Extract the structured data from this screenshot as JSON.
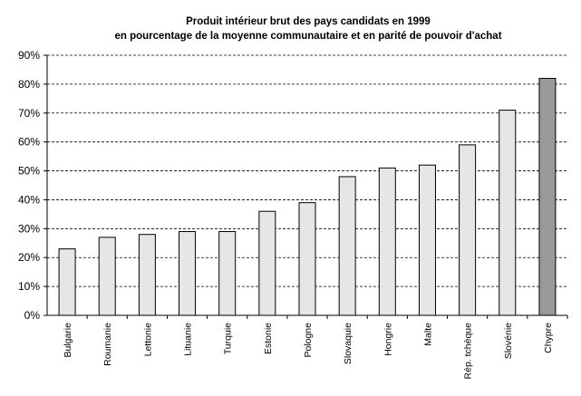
{
  "chart_data": {
    "type": "bar",
    "title": "Produit intérieur brut des pays candidats en 1999",
    "subtitle": "en pourcentage de la moyenne communautaire et en parité de pouvoir d'achat",
    "categories": [
      "Bulgarie",
      "Roumanie",
      "Lettonie",
      "Lituanie",
      "Turquie",
      "Estonie",
      "Pologne",
      "Slovaquie",
      "Hongrie",
      "Malte",
      "Rép. tchèque",
      "Slovénie",
      "Chypre"
    ],
    "values": [
      23,
      27,
      28,
      29,
      29,
      36,
      39,
      48,
      51,
      52,
      59,
      71,
      82
    ],
    "ylim": [
      0,
      90
    ],
    "yticks": [
      "0%",
      "10%",
      "20%",
      "30%",
      "40%",
      "50%",
      "60%",
      "70%",
      "80%",
      "90%"
    ],
    "grid": true,
    "colors": {
      "default_bar": "#e6e6e6",
      "highlight_bar": "#999999",
      "highlight_category": "Chypre"
    }
  }
}
